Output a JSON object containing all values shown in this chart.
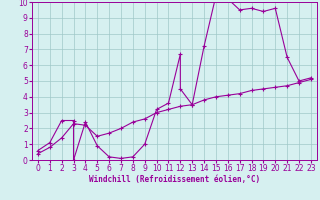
{
  "xlabel": "Windchill (Refroidissement éolien,°C)",
  "bg_color": "#d6f0f0",
  "line_color": "#990099",
  "marker_color": "#990099",
  "grid_color": "#a0c8c8",
  "xlim": [
    -0.5,
    23.5
  ],
  "ylim": [
    0,
    10
  ],
  "xticks": [
    0,
    1,
    2,
    3,
    4,
    5,
    6,
    7,
    8,
    9,
    10,
    11,
    12,
    13,
    14,
    15,
    16,
    17,
    18,
    19,
    20,
    21,
    22,
    23
  ],
  "yticks": [
    0,
    1,
    2,
    3,
    4,
    5,
    6,
    7,
    8,
    9,
    10
  ],
  "series1_x": [
    0,
    1,
    2,
    3,
    3,
    4,
    5,
    6,
    7,
    8,
    9,
    10,
    11,
    12,
    12,
    13,
    14,
    15,
    16,
    17,
    18,
    19,
    20,
    21,
    22,
    23
  ],
  "series1_y": [
    0.6,
    1.1,
    2.5,
    2.5,
    0.0,
    2.4,
    0.9,
    0.2,
    0.1,
    0.2,
    1.0,
    3.2,
    3.6,
    6.7,
    4.5,
    3.5,
    7.2,
    10.4,
    10.2,
    9.5,
    9.6,
    9.4,
    9.6,
    6.5,
    5.0,
    5.2
  ],
  "series2_x": [
    0,
    1,
    2,
    3,
    4,
    5,
    6,
    7,
    8,
    9,
    10,
    11,
    12,
    13,
    14,
    15,
    16,
    17,
    18,
    19,
    20,
    21,
    22,
    23
  ],
  "series2_y": [
    0.4,
    0.8,
    1.4,
    2.3,
    2.2,
    1.5,
    1.7,
    2.0,
    2.4,
    2.6,
    3.0,
    3.2,
    3.4,
    3.5,
    3.8,
    4.0,
    4.1,
    4.2,
    4.4,
    4.5,
    4.6,
    4.7,
    4.9,
    5.1
  ],
  "tick_fontsize": 5.5,
  "xlabel_fontsize": 5.5
}
